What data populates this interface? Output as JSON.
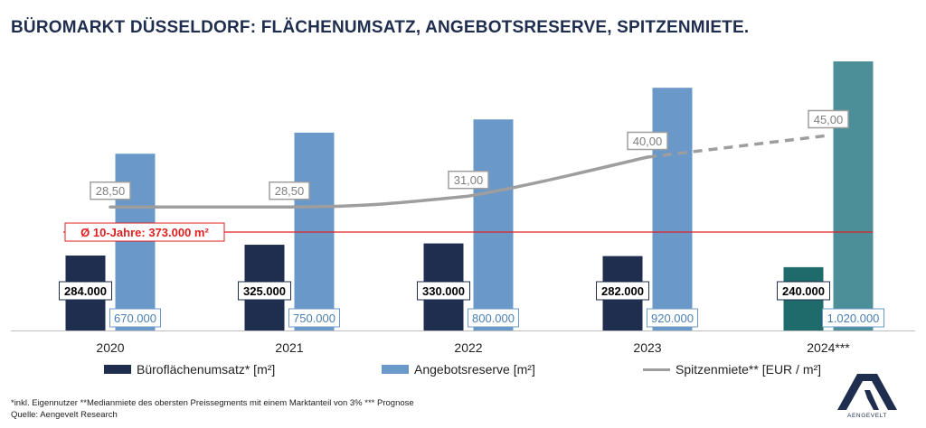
{
  "title": "BÜROMARKT DÜSSELDORF: FLÄCHENUMSATZ, ANGEBOTSRESERVE, SPITZENMIETE.",
  "chart_data": {
    "type": "bar",
    "categories": [
      "2020",
      "2021",
      "2022",
      "2023",
      "2024***"
    ],
    "series": [
      {
        "name": "Büroflächenumsatz* [m²]",
        "values": [
          284000,
          325000,
          330000,
          282000,
          240000
        ],
        "labels": [
          "284.000",
          "325.000",
          "330.000",
          "282.000",
          "240.000"
        ],
        "colors": [
          "#1f2d4e",
          "#1f2d4e",
          "#1f2d4e",
          "#1f2d4e",
          "#1f6b6b"
        ]
      },
      {
        "name": "Angebotsreserve [m²]",
        "values": [
          670000,
          750000,
          800000,
          920000,
          1020000
        ],
        "labels": [
          "670.000",
          "750.000",
          "800.000",
          "920.000",
          "1.020.000"
        ],
        "colors": [
          "#6a98c8",
          "#6a98c8",
          "#6a98c8",
          "#6a98c8",
          "#4d8f99"
        ]
      },
      {
        "name": "Spitzenmiete** [EUR / m²]",
        "type": "line",
        "values": [
          28.5,
          28.5,
          31.0,
          40.0,
          45.0
        ],
        "labels": [
          "28,50",
          "28,50",
          "31,00",
          "40,00",
          "45,00"
        ],
        "color": "#9e9e9e",
        "dashed_last_segment": true
      }
    ],
    "reference_line": {
      "label": "Ø 10-Jahre: 373.000 m²",
      "value": 373000,
      "color": "#e02020"
    },
    "ylim_area": [
      0,
      1150000
    ],
    "ylim_rent": [
      0,
      70
    ],
    "legend_placement": "bottom",
    "grid": false
  },
  "footnote": {
    "line1": "*inkl. Eigennutzer **Medianmiete des obersten Preissegments mit einem Marktanteil von 3% *** Prognose",
    "line2": "Quelle: Aengevelt Research"
  },
  "logo": {
    "text": "AENGEVELT"
  }
}
